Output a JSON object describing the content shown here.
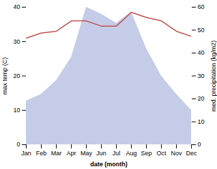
{
  "chart_data": {
    "type": "line",
    "categories": [
      "Jan",
      "Feb",
      "Mar",
      "Apr",
      "May",
      "Jun",
      "Jul",
      "Aug",
      "Sep",
      "Oct",
      "Nov",
      "Dec"
    ],
    "series": [
      {
        "type": "area",
        "axis": "y2",
        "color": "#c5cce8",
        "values": [
          19,
          22,
          28,
          38,
          60,
          57,
          53,
          58,
          42,
          30,
          22,
          15
        ]
      },
      {
        "type": "line",
        "color": "#c0504d",
        "values": [
          31,
          32.5,
          33,
          36,
          36,
          34.5,
          34.5,
          38.5,
          37,
          36,
          33,
          31.5
        ]
      }
    ],
    "xlabel": "date (month)",
    "ylabel": "max temp (C)",
    "y2label": "med. precipitation (kg/m2)",
    "ylim": [
      0,
      40
    ],
    "yticks": [
      0,
      10,
      20,
      30,
      40
    ],
    "y2lim": [
      0,
      60
    ],
    "y2ticks": [
      0,
      10,
      20,
      30,
      40,
      50,
      60
    ],
    "grid": false
  }
}
